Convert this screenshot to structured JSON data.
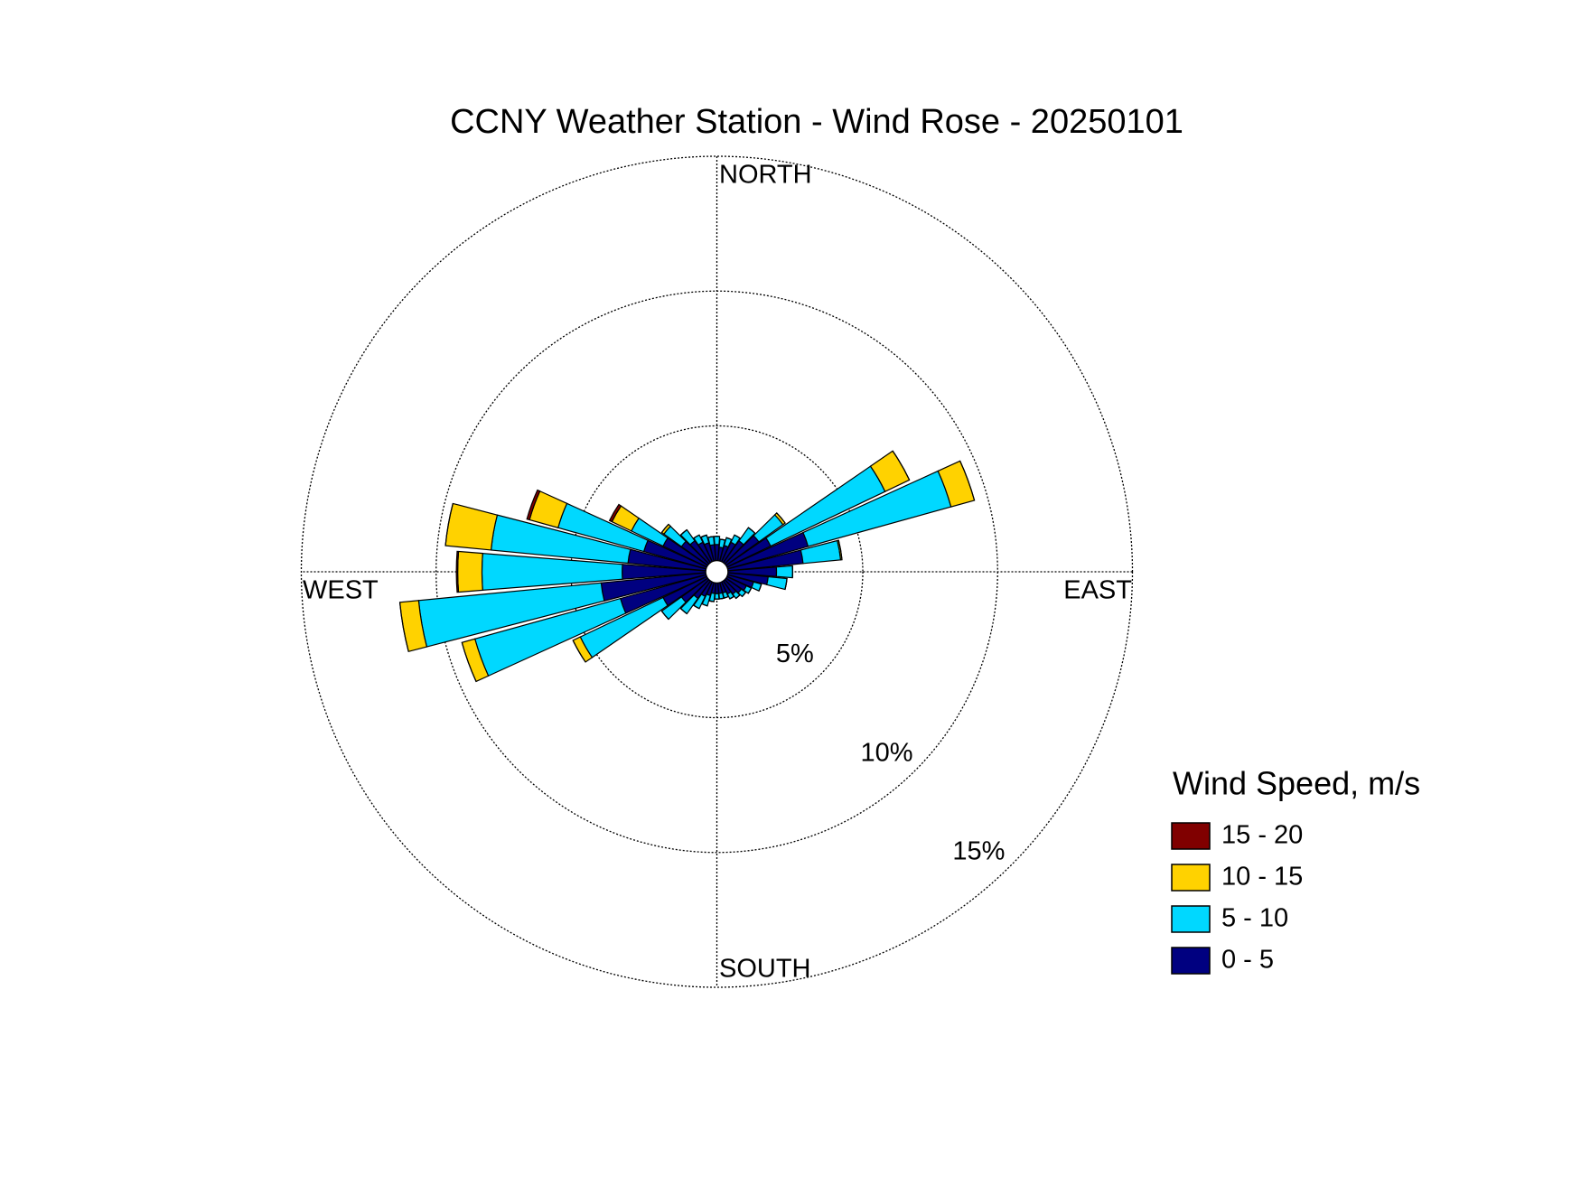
{
  "chart_data": {
    "type": "windrose",
    "title": "CCNY Weather Station - Wind Rose - 20250101",
    "direction_labels": [
      "NORTH",
      "EAST",
      "SOUTH",
      "WEST"
    ],
    "x": [
      0,
      10,
      20,
      30,
      40,
      50,
      60,
      70,
      80,
      90,
      100,
      110,
      120,
      130,
      140,
      150,
      160,
      170,
      180,
      190,
      200,
      210,
      220,
      230,
      240,
      250,
      260,
      270,
      280,
      290,
      300,
      310,
      320,
      330,
      340,
      350
    ],
    "rlim": [
      0,
      15
    ],
    "rticks": [
      {
        "value": 5,
        "label": "5%"
      },
      {
        "value": 10,
        "label": "10%"
      },
      {
        "value": 15,
        "label": "15%"
      }
    ],
    "grid": true,
    "legend_title": "Wind Speed, m/s",
    "legend_position": "right",
    "series": [
      {
        "name": "0 - 5",
        "color": "#000080",
        "values": [
          0.6,
          0.5,
          0.6,
          0.8,
          1.0,
          1.5,
          1.8,
          3.1,
          2.8,
          1.8,
          1.5,
          1.0,
          0.8,
          0.7,
          0.6,
          0.5,
          0.4,
          0.4,
          0.4,
          0.4,
          0.5,
          0.6,
          0.8,
          1.2,
          1.8,
          3.3,
          3.9,
          3.1,
          2.9,
          2.4,
          1.8,
          1.2,
          1.0,
          0.8,
          0.7,
          0.6
        ]
      },
      {
        "name": "5 - 10",
        "color": "#00d8ff",
        "values": [
          0.3,
          0.3,
          0.3,
          0.3,
          0.6,
          1.1,
          4.7,
          5.5,
          1.4,
          0.6,
          0.7,
          0.3,
          0.2,
          0.2,
          0.2,
          0.2,
          0.2,
          0.2,
          0.2,
          0.3,
          0.4,
          0.5,
          0.7,
          0.9,
          3.4,
          5.6,
          6.8,
          5.2,
          5.1,
          3.3,
          1.3,
          0.8,
          0.5,
          0.3,
          0.3,
          0.3
        ]
      },
      {
        "name": "10 - 15",
        "color": "#ffd200",
        "values": [
          0,
          0,
          0,
          0,
          0,
          0.1,
          1.0,
          0.9,
          0.05,
          0,
          0,
          0,
          0,
          0,
          0,
          0,
          0,
          0,
          0,
          0,
          0,
          0,
          0,
          0,
          0.3,
          0.5,
          0.7,
          0.9,
          1.7,
          1.1,
          0.8,
          0.1,
          0,
          0,
          0,
          0
        ]
      },
      {
        "name": "15 - 20",
        "color": "#800000",
        "values": [
          0,
          0,
          0,
          0,
          0,
          0,
          0,
          0,
          0,
          0,
          0,
          0,
          0,
          0,
          0,
          0,
          0,
          0,
          0,
          0,
          0,
          0,
          0,
          0,
          0,
          0,
          0,
          0.05,
          0,
          0.1,
          0.1,
          0,
          0,
          0,
          0,
          0
        ]
      }
    ]
  }
}
